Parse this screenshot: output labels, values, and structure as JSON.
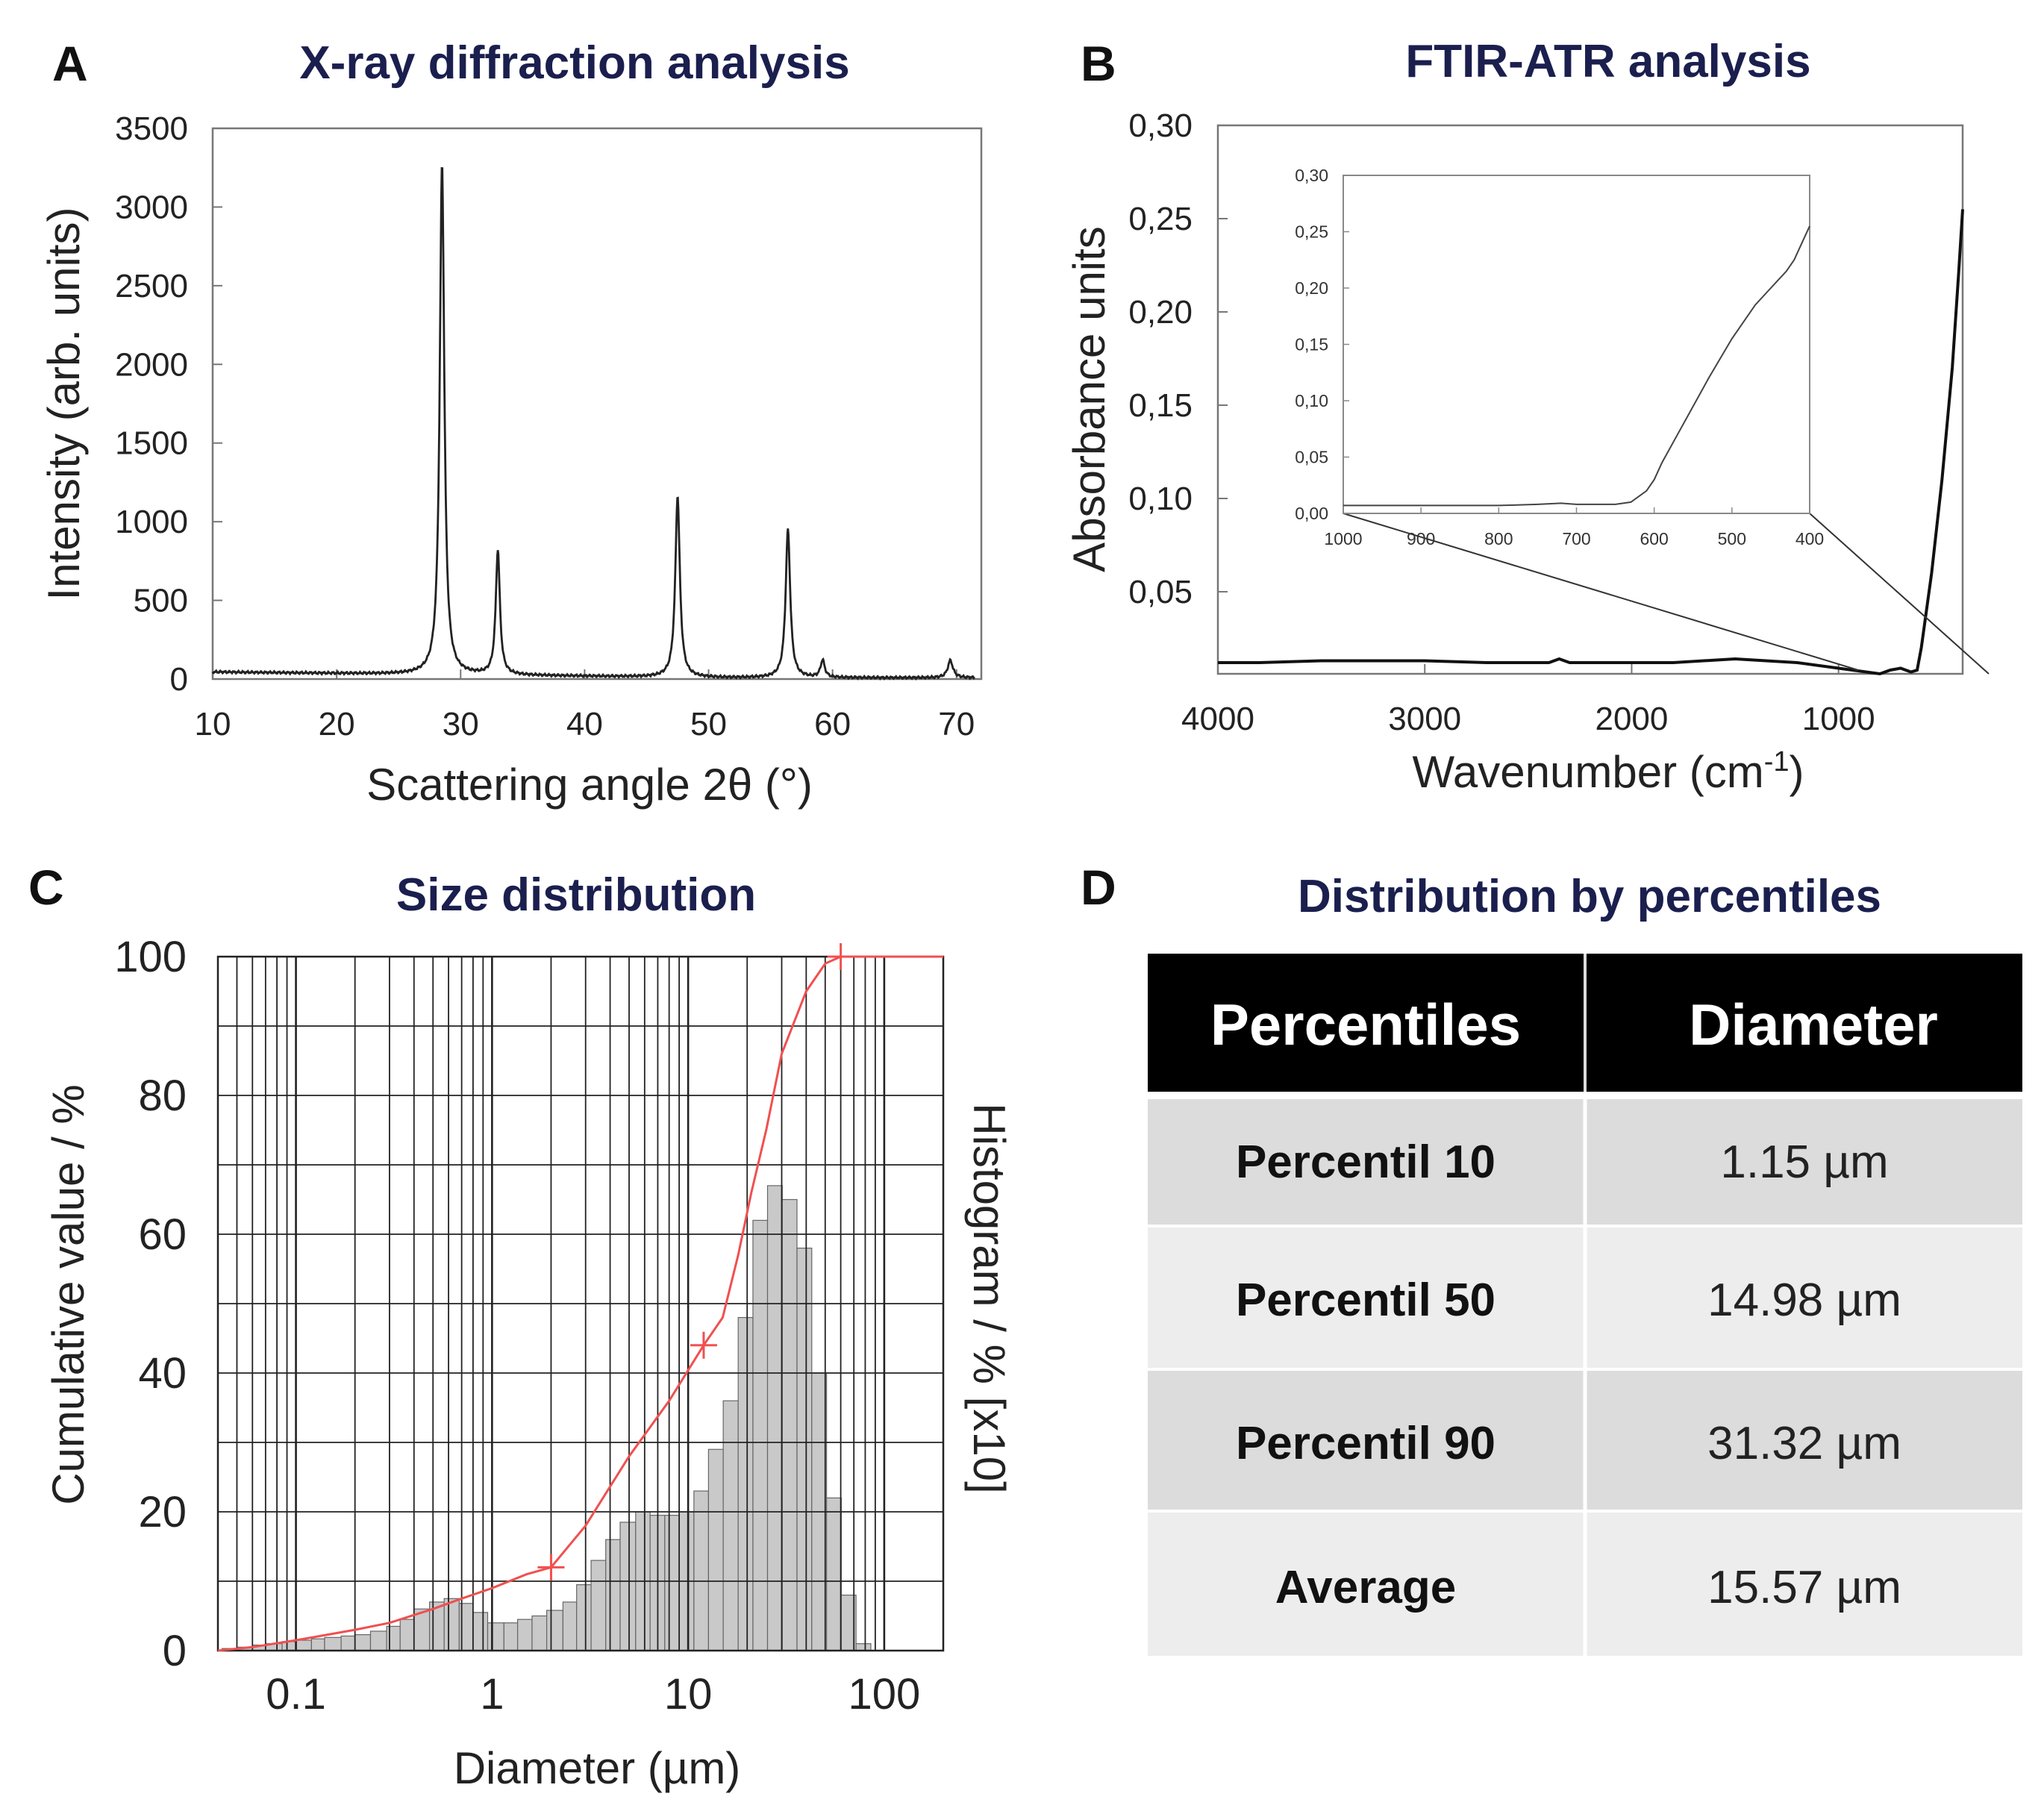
{
  "chart_data": [
    {
      "id": "A",
      "type": "line",
      "panel_letter": "A",
      "title": "X-ray diffraction analysis",
      "xlabel": "Scattering angle 2θ (°)",
      "ylabel": "Intensity (arb. units)",
      "xlim": [
        10,
        72
      ],
      "ylim": [
        0,
        3500
      ],
      "xticks": [
        "10",
        "20",
        "30",
        "40",
        "50",
        "60",
        "70"
      ],
      "yticks": [
        "0",
        "500",
        "1000",
        "1500",
        "2000",
        "2500",
        "3000",
        "3500"
      ],
      "peaks": [
        {
          "x": 28.5,
          "y": 3240,
          "w": 0.22
        },
        {
          "x": 33.0,
          "y": 790,
          "w": 0.2
        },
        {
          "x": 47.5,
          "y": 1150,
          "w": 0.22
        },
        {
          "x": 56.4,
          "y": 940,
          "w": 0.22
        },
        {
          "x": 59.2,
          "y": 110,
          "w": 0.2
        },
        {
          "x": 69.5,
          "y": 110,
          "w": 0.25
        }
      ]
    },
    {
      "id": "B",
      "type": "line",
      "panel_letter": "B",
      "title": "FTIR-ATR analysis",
      "xlabel": "Wavenumber (cm",
      "xlabel_sup": "-1",
      "xlabel_end": ")",
      "ylabel": "Absorbance units",
      "xlim": [
        4000,
        400
      ],
      "ylim": [
        0,
        0.3
      ],
      "xticks": [
        "4000",
        "3000",
        "2000",
        "1000"
      ],
      "yticks": [
        "0,05",
        "0,10",
        "0,15",
        "0,20",
        "0,25",
        "0,30"
      ],
      "series": [
        {
          "name": "spectrum",
          "x": [
            4000,
            3800,
            3500,
            3200,
            3000,
            2700,
            2400,
            2350,
            2300,
            2000,
            1800,
            1500,
            1200,
            1000,
            800,
            750,
            700,
            650,
            620,
            600,
            550,
            500,
            450,
            420,
            400
          ],
          "y": [
            0.012,
            0.012,
            0.013,
            0.013,
            0.013,
            0.012,
            0.012,
            0.014,
            0.012,
            0.012,
            0.012,
            0.014,
            0.012,
            0.009,
            0.006,
            0.008,
            0.009,
            0.007,
            0.008,
            0.02,
            0.06,
            0.11,
            0.17,
            0.22,
            0.255
          ]
        }
      ],
      "inset": {
        "xlim": [
          1000,
          400
        ],
        "ylim": [
          0,
          0.3
        ],
        "xticks": [
          "1000",
          "900",
          "800",
          "700",
          "600",
          "500",
          "400"
        ],
        "yticks": [
          "0,00",
          "0,05",
          "0,10",
          "0,15",
          "0,20",
          "0,25",
          "0,30"
        ],
        "x": [
          1000,
          900,
          800,
          750,
          720,
          700,
          650,
          630,
          610,
          600,
          590,
          570,
          550,
          530,
          500,
          470,
          450,
          430,
          420,
          410,
          400
        ],
        "y": [
          0.007,
          0.007,
          0.007,
          0.008,
          0.009,
          0.008,
          0.008,
          0.01,
          0.02,
          0.03,
          0.045,
          0.07,
          0.095,
          0.12,
          0.155,
          0.185,
          0.2,
          0.215,
          0.225,
          0.24,
          0.255
        ]
      }
    },
    {
      "id": "C",
      "type": "bar",
      "panel_letter": "C",
      "title": "Size distribution",
      "xlabel": "Diameter (µm)",
      "ylabel": "Cumulative value / %",
      "ylabel_right": "Histogram / % [x10]",
      "xscale": "log",
      "xlim": [
        0.04,
        200
      ],
      "ylim": [
        0,
        100
      ],
      "xticks": [
        "0.1",
        "1",
        "10",
        "100"
      ],
      "yticks": [
        "0",
        "20",
        "40",
        "60",
        "80",
        "100"
      ],
      "histogram": {
        "x": [
          0.042,
          0.05,
          0.06,
          0.07,
          0.085,
          0.1,
          0.12,
          0.14,
          0.17,
          0.2,
          0.24,
          0.29,
          0.34,
          0.4,
          0.48,
          0.57,
          0.68,
          0.8,
          0.95,
          1.15,
          1.35,
          1.6,
          1.9,
          2.3,
          2.7,
          3.2,
          3.8,
          4.5,
          5.4,
          6.4,
          7.6,
          9.0,
          10.7,
          12.7,
          15.1,
          18.0,
          21.4,
          25.4,
          30.2,
          35.9,
          42.7,
          50.8,
          60.4,
          71.8
        ],
        "values": [
          0.3,
          0.5,
          0.8,
          1.0,
          1.3,
          1.5,
          1.7,
          1.9,
          2.1,
          2.3,
          2.8,
          3.5,
          4.5,
          6.0,
          7.0,
          7.5,
          6.8,
          5.5,
          4.0,
          4.0,
          4.5,
          5.0,
          5.8,
          7.0,
          9.5,
          13,
          16,
          18.5,
          20,
          19.5,
          19.5,
          20,
          23,
          29,
          36,
          48,
          62,
          67,
          65,
          58,
          40,
          22,
          8,
          1
        ]
      },
      "cumulative": {
        "x": [
          0.04,
          0.06,
          0.1,
          0.2,
          0.3,
          0.5,
          0.7,
          1.0,
          1.5,
          2.0,
          3.0,
          5.0,
          8.0,
          12.0,
          15.0,
          18.0,
          21.0,
          25.0,
          30.0,
          40.0,
          50.0,
          60.0,
          70.0,
          100.0,
          200.0
        ],
        "y": [
          0,
          0.5,
          1.5,
          3,
          4,
          6,
          7.5,
          9,
          11,
          12,
          18,
          28,
          36,
          44,
          48,
          57,
          66,
          75,
          86,
          95,
          99,
          100,
          100,
          100,
          100
        ]
      },
      "markers_x": [
        2.0,
        12.0,
        60.0
      ]
    }
  ],
  "table": {
    "panel_letter": "D",
    "title": "Distribution by percentiles",
    "headers": [
      "Percentiles",
      "Diameter"
    ],
    "rows": [
      {
        "label": "Percentil 10",
        "value": "1.15 µm"
      },
      {
        "label": "Percentil 50",
        "value": "14.98 µm"
      },
      {
        "label": "Percentil 90",
        "value": "31.32 µm"
      },
      {
        "label": "Average",
        "value": "15.57 µm"
      }
    ]
  }
}
